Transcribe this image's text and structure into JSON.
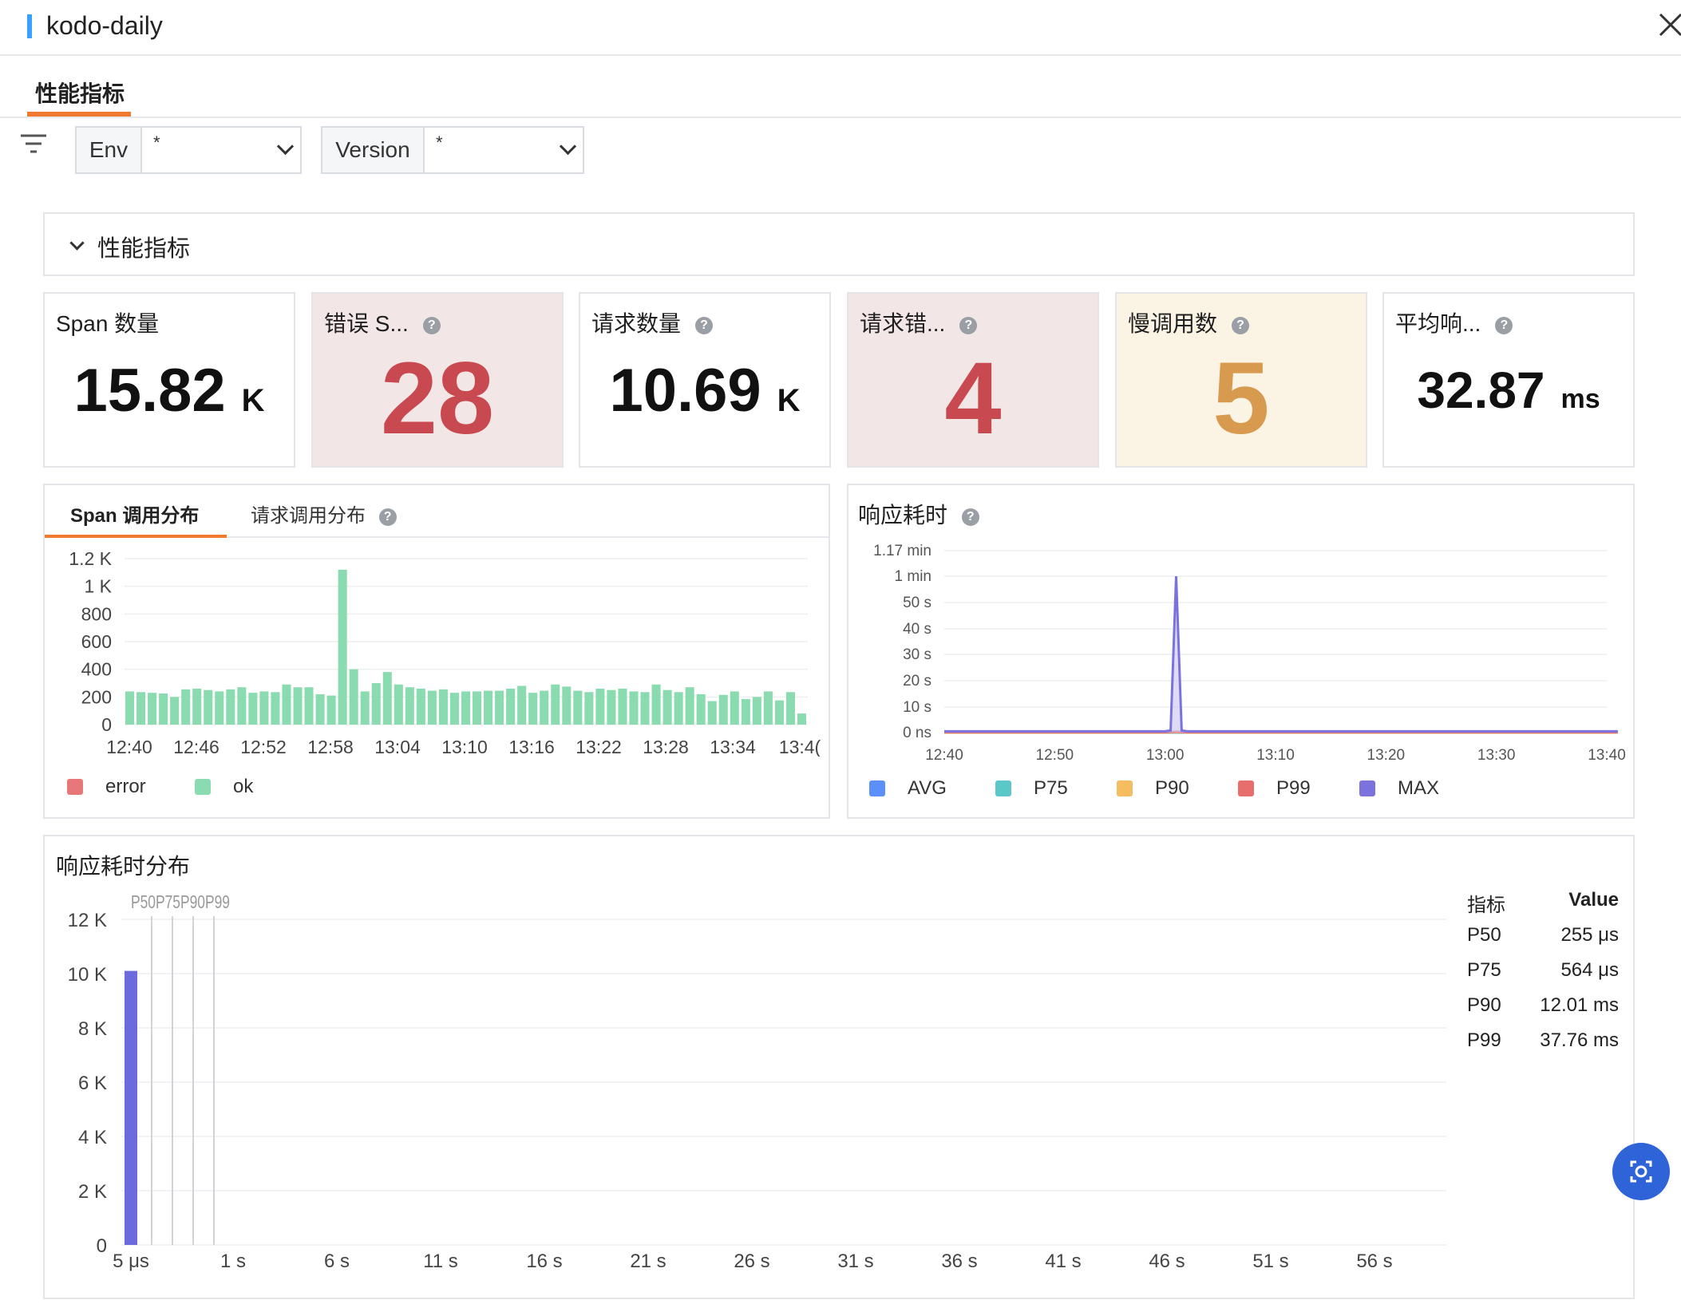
{
  "header": {
    "title": "kodo-daily"
  },
  "tabs": [
    {
      "label": "性能指标",
      "active": true
    }
  ],
  "filters": [
    {
      "label": "Env",
      "value": "*"
    },
    {
      "label": "Version",
      "value": "*"
    }
  ],
  "section": {
    "title": "性能指标"
  },
  "stats": [
    {
      "title": "Span 数量",
      "value": "15.82",
      "unit": "K",
      "help": false
    },
    {
      "title": "错误 S...",
      "value": "28",
      "unit": "",
      "help": true,
      "color": "#c8494f",
      "bg": "#f3e6e6"
    },
    {
      "title": "请求数量",
      "value": "10.69",
      "unit": "K",
      "help": true
    },
    {
      "title": "请求错...",
      "value": "4",
      "unit": "",
      "help": true,
      "color": "#c8494f",
      "bg": "#f3e6e6"
    },
    {
      "title": "慢调用数",
      "value": "5",
      "unit": "",
      "help": true,
      "color": "#d89a4e",
      "bg": "#fbf4e4"
    },
    {
      "title": "平均响...",
      "value": "32.87",
      "unit": "ms",
      "help": true
    }
  ],
  "span_panel": {
    "tabs": [
      {
        "label": "Span 调用分布",
        "active": true
      },
      {
        "label": "请求调用分布",
        "active": false
      }
    ],
    "legend": [
      {
        "name": "error",
        "color": "#e8777a"
      },
      {
        "name": "ok",
        "color": "#8adbaf"
      }
    ]
  },
  "latency_panel": {
    "title": "响应耗时",
    "legend": [
      {
        "name": "AVG",
        "color": "#5b8ff9"
      },
      {
        "name": "P75",
        "color": "#5ac8c8"
      },
      {
        "name": "P90",
        "color": "#f6bd60"
      },
      {
        "name": "P99",
        "color": "#e86e6e"
      },
      {
        "name": "MAX",
        "color": "#7b72de"
      }
    ]
  },
  "dist_panel": {
    "title": "响应耗时分布",
    "table_headers": [
      "指标",
      "Value"
    ],
    "table_rows": [
      [
        "P50",
        "255 μs"
      ],
      [
        "P75",
        "564 μs"
      ],
      [
        "P90",
        "12.01 ms"
      ],
      [
        "P99",
        "37.76 ms"
      ]
    ]
  },
  "chart_data": [
    {
      "type": "bar",
      "title": "Span 调用分布",
      "x_tick_labels": [
        "12:40",
        "12:46",
        "12:52",
        "12:58",
        "13:04",
        "13:10",
        "13:16",
        "13:22",
        "13:28",
        "13:34",
        "13:4("
      ],
      "y_tick_labels": [
        "0",
        "200",
        "400",
        "600",
        "800",
        "1 K",
        "1.2 K"
      ],
      "ylim": [
        0,
        1200
      ],
      "series": [
        {
          "name": "ok",
          "color": "#8adbaf",
          "values": [
            240,
            235,
            230,
            225,
            200,
            255,
            260,
            250,
            240,
            255,
            270,
            230,
            240,
            235,
            290,
            270,
            270,
            220,
            210,
            1120,
            400,
            240,
            300,
            380,
            290,
            270,
            260,
            245,
            255,
            230,
            240,
            240,
            245,
            245,
            260,
            280,
            230,
            245,
            290,
            275,
            245,
            235,
            260,
            250,
            260,
            240,
            235,
            290,
            250,
            235,
            270,
            220,
            170,
            215,
            240,
            185,
            200,
            240,
            175,
            235,
            80
          ]
        },
        {
          "name": "error",
          "color": "#e8777a",
          "values": []
        }
      ],
      "grid": true,
      "legend_position": "bottom-left"
    },
    {
      "type": "line",
      "title": "响应耗时",
      "x_tick_labels": [
        "12:40",
        "12:50",
        "13:00",
        "13:10",
        "13:20",
        "13:30",
        "13:40"
      ],
      "y_tick_labels": [
        "0 ns",
        "10 s",
        "20 s",
        "30 s",
        "40 s",
        "50 s",
        "1 min",
        "1.17 min"
      ],
      "ylim": [
        0,
        70
      ],
      "series": [
        {
          "name": "MAX",
          "color": "#7b72de",
          "x_minutes": [
            0,
            20,
            20.5,
            21,
            21.5,
            22,
            61
          ],
          "values": [
            0.5,
            0.5,
            0.8,
            60,
            0.8,
            0.5,
            0.5
          ]
        },
        {
          "name": "P99",
          "color": "#e86e6e",
          "x_minutes": [
            0,
            20,
            21,
            22,
            61
          ],
          "values": [
            0.1,
            0.1,
            0.3,
            0.1,
            0.1
          ]
        },
        {
          "name": "P90",
          "color": "#f6bd60",
          "x_minutes": [
            0,
            20,
            21,
            22,
            61
          ],
          "values": [
            0.05,
            0.05,
            0.2,
            0.05,
            0.05
          ]
        },
        {
          "name": "P75",
          "color": "#5ac8c8",
          "x_minutes": [
            0,
            61
          ],
          "values": [
            0.01,
            0.01
          ]
        },
        {
          "name": "AVG",
          "color": "#5b8ff9",
          "x_minutes": [
            0,
            61
          ],
          "values": [
            0.03,
            0.03
          ]
        }
      ],
      "grid": true,
      "legend_position": "bottom-left"
    },
    {
      "type": "bar",
      "title": "响应耗时分布",
      "x_tick_labels": [
        "5 μs",
        "1 s",
        "6 s",
        "11 s",
        "16 s",
        "21 s",
        "26 s",
        "31 s",
        "36 s",
        "41 s",
        "46 s",
        "51 s",
        "56 s"
      ],
      "y_tick_labels": [
        "0",
        "2 K",
        "4 K",
        "6 K",
        "8 K",
        "10 K",
        "12 K"
      ],
      "ylim": [
        0,
        12000
      ],
      "bins": [
        {
          "label": "5 μs",
          "value": 10100,
          "color": "#6b6bde"
        }
      ],
      "markers": [
        {
          "name": "P50",
          "value": "255 μs"
        },
        {
          "name": "P75",
          "value": "564 μs"
        },
        {
          "name": "P90",
          "value": "12.01 ms"
        },
        {
          "name": "P99",
          "value": "37.76 ms"
        }
      ],
      "marker_label": "P50P75P90P99",
      "grid": true
    }
  ]
}
